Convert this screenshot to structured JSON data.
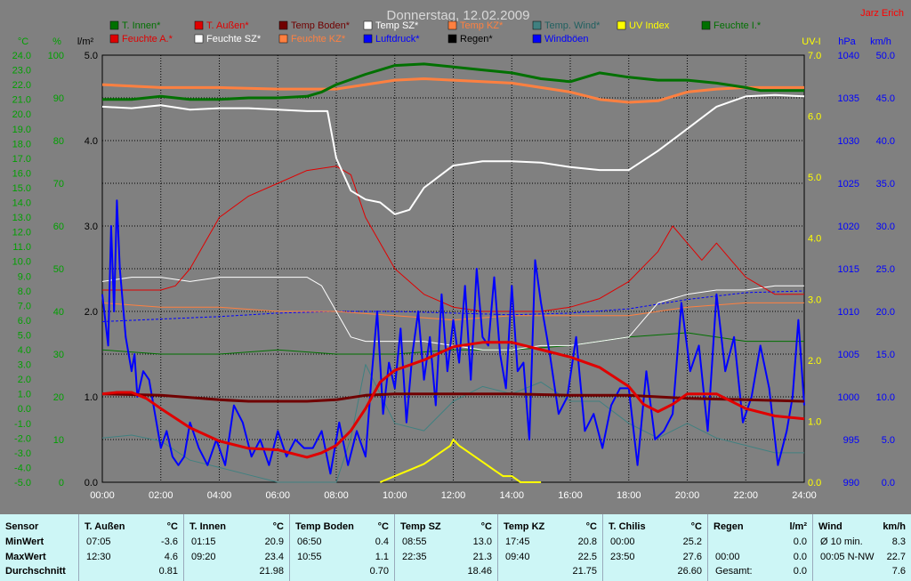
{
  "chart_data": {
    "type": "line",
    "title": "Donnerstag, 12.02.2009",
    "credit": "Jarz Erich",
    "x_ticks": [
      "00:00",
      "02:00",
      "04:00",
      "06:00",
      "08:00",
      "10:00",
      "12:00",
      "14:00",
      "16:00",
      "18:00",
      "20:00",
      "22:00",
      "24:00"
    ],
    "axes": {
      "temp": {
        "unit": "°C",
        "range": [
          -5,
          24
        ],
        "ticks": [
          "24.0",
          "23.0",
          "22.0",
          "21.0",
          "20.0",
          "19.0",
          "18.0",
          "17.0",
          "16.0",
          "15.0",
          "14.0",
          "13.0",
          "12.0",
          "11.0",
          "10.0",
          "9.0",
          "8.0",
          "7.0",
          "6.0",
          "5.0",
          "4.0",
          "3.0",
          "2.0",
          "1.0",
          "0.0",
          "-1.0",
          "-2.0",
          "-3.0",
          "-4.0",
          "-5.0"
        ]
      },
      "humidity": {
        "unit": "%",
        "range": [
          0,
          100
        ],
        "ticks": [
          "100",
          "90",
          "80",
          "70",
          "60",
          "50",
          "40",
          "30",
          "20",
          "10",
          "0"
        ]
      },
      "rain": {
        "unit": "l/m²",
        "range": [
          0,
          5
        ],
        "ticks": [
          "5.0",
          "4.0",
          "3.0",
          "2.0",
          "1.0",
          "0.0"
        ]
      },
      "uv": {
        "unit": "UV-I",
        "range": [
          0,
          7
        ],
        "ticks": [
          "7.0",
          "6.0",
          "5.0",
          "4.0",
          "3.0",
          "2.0",
          "1.0",
          "0.0"
        ]
      },
      "pressure": {
        "unit": "hPa",
        "range": [
          990,
          1040
        ],
        "ticks": [
          "1040",
          "1035",
          "1030",
          "1025",
          "1020",
          "1015",
          "1010",
          "1005",
          "1000",
          "995",
          "990"
        ]
      },
      "wind": {
        "unit": "km/h",
        "range": [
          0,
          50
        ],
        "ticks": [
          "50.0",
          "45.0",
          "40.0",
          "35.0",
          "30.0",
          "25.0",
          "20.0",
          "15.0",
          "10.0",
          "5.0",
          "0.0"
        ]
      }
    },
    "legend": [
      {
        "name": "T. Innen*",
        "color": "#007000"
      },
      {
        "name": "T. Außen*",
        "color": "#e00000"
      },
      {
        "name": "Temp Boden*",
        "color": "#700000"
      },
      {
        "name": "Temp SZ*",
        "color": "#ffffff"
      },
      {
        "name": "Temp KZ*",
        "color": "#ff8040"
      },
      {
        "name": "Temp. Wind*",
        "color": "#408080"
      },
      {
        "name": "UV Index",
        "color": "#ffff00"
      },
      {
        "name": "Feuchte I.*",
        "color": "#007000"
      },
      {
        "name": "Feuchte A.*",
        "color": "#e00000"
      },
      {
        "name": "Feuchte SZ*",
        "color": "#ffffff"
      },
      {
        "name": "Feuchte KZ*",
        "color": "#ff8040"
      },
      {
        "name": "Luftdruck*",
        "color": "#0000ff"
      },
      {
        "name": "Regen*",
        "color": "#000000"
      },
      {
        "name": "Windböen",
        "color": "#0000ff"
      }
    ],
    "series": [
      {
        "key": "t_innen",
        "name": "T. Innen*",
        "color": "#007000",
        "axis": "temp",
        "width": 3,
        "x": [
          0,
          1,
          2,
          3,
          4,
          5,
          6,
          7,
          7.5,
          8,
          9,
          9.5,
          10,
          11,
          12,
          13,
          14,
          15,
          16,
          17,
          18,
          19,
          20,
          21,
          22,
          22.5,
          23,
          24
        ],
        "y": [
          21.0,
          21.0,
          21.2,
          21.0,
          21.0,
          21.1,
          21.1,
          21.2,
          21.5,
          22.0,
          22.7,
          23.0,
          23.3,
          23.4,
          23.2,
          23.0,
          22.8,
          22.4,
          22.2,
          22.8,
          22.5,
          22.3,
          22.3,
          22.1,
          21.8,
          21.6,
          21.6,
          21.6
        ]
      },
      {
        "key": "t_aussen",
        "name": "T. Außen*",
        "color": "#e00000",
        "axis": "temp",
        "width": 3,
        "x": [
          0,
          0.5,
          1,
          1.5,
          2,
          3,
          4,
          5,
          6,
          7,
          7.5,
          8,
          8.5,
          9,
          9.5,
          10,
          11,
          12,
          13,
          14,
          15,
          16,
          17,
          18,
          18.5,
          19,
          19.5,
          20,
          21,
          22,
          23,
          24
        ],
        "y": [
          1.0,
          1.1,
          1.1,
          0.7,
          0.0,
          -1.3,
          -2.2,
          -2.7,
          -2.8,
          -3.3,
          -3.0,
          -2.5,
          -1.5,
          0.0,
          1.8,
          2.6,
          3.3,
          4.2,
          4.5,
          4.5,
          4.0,
          3.5,
          2.8,
          1.5,
          0.3,
          -0.2,
          0.3,
          1.0,
          1.0,
          0.0,
          -0.5,
          -0.7
        ]
      },
      {
        "key": "t_boden",
        "name": "Temp Boden*",
        "color": "#700000",
        "axis": "temp",
        "width": 3,
        "x": [
          0,
          2,
          4,
          5,
          6,
          7,
          8,
          9,
          10,
          12,
          14,
          16,
          18,
          20,
          22,
          24
        ],
        "y": [
          1.0,
          0.9,
          0.6,
          0.5,
          0.5,
          0.5,
          0.6,
          0.9,
          1.0,
          1.0,
          1.0,
          0.9,
          0.9,
          0.7,
          0.6,
          0.5
        ]
      },
      {
        "key": "t_sz",
        "name": "Temp SZ*",
        "color": "#ffffff",
        "axis": "temp",
        "width": 2,
        "x": [
          0,
          1,
          2,
          3,
          4,
          5,
          6,
          7,
          7.7,
          8,
          8.5,
          9,
          9.5,
          10,
          10.5,
          11,
          12,
          13,
          14,
          15,
          16,
          17,
          18,
          19,
          20,
          21,
          22,
          23,
          24
        ],
        "y": [
          20.5,
          20.4,
          20.6,
          20.3,
          20.4,
          20.4,
          20.3,
          20.2,
          20.2,
          17.0,
          14.8,
          14.2,
          14.0,
          13.2,
          13.5,
          15.0,
          16.5,
          16.8,
          16.8,
          16.7,
          16.4,
          16.2,
          16.2,
          17.5,
          19.0,
          20.5,
          21.2,
          21.3,
          21.2
        ]
      },
      {
        "key": "t_kz",
        "name": "Temp KZ*",
        "color": "#ff8040",
        "axis": "temp",
        "width": 3,
        "x": [
          0,
          2,
          4,
          6,
          8,
          9,
          10,
          11,
          12,
          13,
          14,
          15,
          16,
          17,
          18,
          19,
          20,
          21,
          22,
          23,
          24
        ],
        "y": [
          22.0,
          21.8,
          21.8,
          21.7,
          21.7,
          22.0,
          22.3,
          22.4,
          22.3,
          22.2,
          22.1,
          21.8,
          21.5,
          21.0,
          20.8,
          20.9,
          21.5,
          21.7,
          21.8,
          21.8,
          21.8
        ]
      },
      {
        "key": "feuchte_a",
        "name": "Feuchte A.*",
        "color": "#e00000",
        "axis": "humidity",
        "width": 1,
        "x": [
          0,
          1,
          2,
          2.5,
          3,
          4,
          5,
          6,
          7,
          8,
          8.5,
          9,
          10,
          11,
          12,
          13,
          14,
          15,
          16,
          17,
          18,
          19,
          19.5,
          20,
          20.5,
          21,
          21.5,
          22,
          23,
          24
        ],
        "y": [
          45,
          45,
          45,
          46,
          50,
          62,
          67,
          70,
          73,
          74,
          72,
          62,
          50,
          44,
          41,
          40,
          40,
          40,
          41,
          43,
          47,
          54,
          60,
          56,
          52,
          56,
          52,
          48,
          44,
          44
        ]
      },
      {
        "key": "feuchte_sz",
        "name": "Feuchte SZ*",
        "color": "#ffffff",
        "axis": "humidity",
        "width": 1,
        "x": [
          0,
          1,
          2,
          3,
          4,
          5,
          6,
          7,
          7.5,
          8,
          8.5,
          9,
          10,
          11,
          12,
          13,
          14,
          15,
          16,
          17,
          18,
          19,
          20,
          21,
          22,
          23,
          24
        ],
        "y": [
          47,
          48,
          48,
          47,
          48,
          48,
          48,
          48,
          46,
          40,
          34,
          33,
          33,
          33,
          32,
          31,
          31,
          32,
          32,
          33,
          34,
          42,
          44,
          45,
          45,
          46,
          46
        ]
      },
      {
        "key": "feuchte_kz",
        "name": "Feuchte KZ*",
        "color": "#ff8040",
        "axis": "humidity",
        "width": 1,
        "x": [
          0,
          2,
          4,
          6,
          8,
          10,
          12,
          14,
          16,
          18,
          20,
          22,
          24
        ],
        "y": [
          42,
          41,
          41,
          40,
          40,
          39,
          38,
          39,
          39,
          39,
          41,
          42,
          42
        ]
      },
      {
        "key": "feuchte_i",
        "name": "Feuchte I.*",
        "color": "#007000",
        "axis": "humidity",
        "width": 1,
        "x": [
          0,
          2,
          4,
          6,
          8,
          10,
          12,
          14,
          16,
          18,
          20,
          22,
          24
        ],
        "y": [
          31,
          30,
          30,
          31,
          30,
          30,
          31,
          31,
          32,
          34,
          35,
          33,
          33
        ]
      },
      {
        "key": "temp_wind",
        "name": "Temp. Wind*",
        "color": "#408080",
        "axis": "temp",
        "width": 1,
        "x": [
          0,
          1,
          2,
          3,
          4,
          5,
          6,
          7,
          8,
          8.5,
          9,
          9.5,
          10,
          11,
          12,
          13,
          14,
          15,
          16,
          17,
          18,
          19,
          20,
          21,
          22,
          23,
          24
        ],
        "y": [
          -2.0,
          -1.8,
          -2.2,
          -3.5,
          -4.0,
          -4.5,
          -5.0,
          -5.0,
          -5.0,
          -2.0,
          3.0,
          1.0,
          -1.0,
          -1.5,
          0.5,
          1.5,
          1.0,
          1.8,
          0.5,
          0.5,
          -1.0,
          -2.0,
          -1.0,
          -2.0,
          -2.5,
          -3.0,
          -3.0
        ]
      },
      {
        "key": "luftdruck",
        "name": "Luftdruck*",
        "color": "#0000ff",
        "axis": "pressure",
        "width": 1,
        "dash": "3,2",
        "x": [
          0,
          2,
          4,
          6,
          8,
          10,
          12,
          14,
          16,
          18,
          20,
          22,
          24
        ],
        "y": [
          1008.8,
          1009.1,
          1009.4,
          1009.8,
          1010.0,
          1010.0,
          1009.8,
          1009.6,
          1009.8,
          1010.3,
          1011.4,
          1012.2,
          1012.4
        ]
      },
      {
        "key": "uv",
        "name": "UV Index",
        "color": "#ffff00",
        "axis": "uv",
        "width": 2,
        "x": [
          9.5,
          10,
          10.5,
          11,
          11.3,
          11.6,
          11.9,
          12,
          12.2,
          12.5,
          12.8,
          13.1,
          13.4,
          13.7,
          14,
          14.3,
          14.6,
          15
        ],
        "y": [
          0.0,
          0.1,
          0.2,
          0.3,
          0.4,
          0.5,
          0.6,
          0.7,
          0.6,
          0.5,
          0.4,
          0.3,
          0.2,
          0.1,
          0.1,
          0.0,
          0.0,
          0.0
        ]
      },
      {
        "key": "windboeen",
        "name": "Windböen",
        "color": "#0000ff",
        "axis": "wind",
        "width": 2,
        "x": [
          0,
          0.2,
          0.3,
          0.4,
          0.5,
          0.6,
          0.7,
          0.8,
          0.9,
          1.0,
          1.1,
          1.2,
          1.4,
          1.6,
          1.8,
          2.0,
          2.2,
          2.4,
          2.6,
          2.8,
          3.0,
          3.3,
          3.6,
          3.9,
          4.2,
          4.5,
          4.8,
          5.1,
          5.4,
          5.7,
          6.0,
          6.3,
          6.6,
          6.9,
          7.2,
          7.5,
          7.8,
          8.1,
          8.4,
          8.7,
          9.0,
          9.2,
          9.4,
          9.6,
          9.8,
          10.0,
          10.2,
          10.4,
          10.6,
          10.8,
          11.0,
          11.2,
          11.4,
          11.6,
          11.8,
          12.0,
          12.2,
          12.4,
          12.6,
          12.8,
          13.0,
          13.2,
          13.4,
          13.6,
          13.8,
          14.0,
          14.2,
          14.4,
          14.6,
          14.8,
          15.0,
          15.3,
          15.6,
          15.9,
          16.2,
          16.5,
          16.8,
          17.1,
          17.4,
          17.7,
          18.0,
          18.3,
          18.6,
          18.9,
          19.2,
          19.5,
          19.8,
          20.1,
          20.4,
          20.7,
          21.0,
          21.3,
          21.6,
          21.9,
          22.2,
          22.5,
          22.8,
          23.1,
          23.4,
          23.6,
          23.8,
          24.0
        ],
        "y": [
          22,
          16,
          30,
          20,
          33,
          25,
          21,
          17,
          15,
          13,
          15,
          10,
          13,
          12,
          8,
          4,
          6,
          3,
          2,
          3,
          7,
          4,
          2,
          5,
          2,
          9,
          7,
          3,
          5,
          2,
          6,
          3,
          5,
          4,
          4,
          6,
          1,
          7,
          2,
          6,
          3,
          12,
          20,
          8,
          14,
          11,
          18,
          7,
          15,
          20,
          12,
          17,
          9,
          22,
          13,
          19,
          14,
          23,
          12,
          25,
          17,
          16,
          24,
          15,
          11,
          23,
          13,
          14,
          5,
          26,
          21,
          15,
          8,
          10,
          17,
          6,
          8,
          4,
          9,
          11,
          11,
          2,
          13,
          5,
          6,
          8,
          21,
          13,
          16,
          6,
          22,
          13,
          17,
          7,
          10,
          16,
          11,
          2,
          6,
          10,
          19,
          9
        ]
      }
    ]
  },
  "stats": {
    "sensor": {
      "title": "Sensor",
      "rows": [
        "MinWert",
        "MaxWert",
        "Durchschnitt"
      ]
    },
    "groups": [
      {
        "title": "T. Außen",
        "unit": "°C",
        "rows": [
          [
            "07:05",
            "-3.6"
          ],
          [
            "12:30",
            "4.6"
          ],
          [
            "",
            "0.81"
          ]
        ]
      },
      {
        "title": "T. Innen",
        "unit": "°C",
        "rows": [
          [
            "01:15",
            "20.9"
          ],
          [
            "09:20",
            "23.4"
          ],
          [
            "",
            "21.98"
          ]
        ]
      },
      {
        "title": "Temp Boden",
        "unit": "°C",
        "rows": [
          [
            "06:50",
            "0.4"
          ],
          [
            "10:55",
            "1.1"
          ],
          [
            "",
            "0.70"
          ]
        ]
      },
      {
        "title": "Temp SZ",
        "unit": "°C",
        "rows": [
          [
            "08:55",
            "13.0"
          ],
          [
            "22:35",
            "21.3"
          ],
          [
            "",
            "18.46"
          ]
        ]
      },
      {
        "title": "Temp KZ",
        "unit": "°C",
        "rows": [
          [
            "17:45",
            "20.8"
          ],
          [
            "09:40",
            "22.5"
          ],
          [
            "",
            "21.75"
          ]
        ]
      },
      {
        "title": "T. Chilis",
        "unit": "°C",
        "rows": [
          [
            "00:00",
            "25.2"
          ],
          [
            "23:50",
            "27.6"
          ],
          [
            "",
            "26.60"
          ]
        ]
      },
      {
        "title": "Regen",
        "unit": "l/m²",
        "rows": [
          [
            "",
            "0.0"
          ],
          [
            "00:00",
            "0.0"
          ],
          [
            "Gesamt:",
            "0.0"
          ]
        ]
      },
      {
        "title": "Wind",
        "unit": "km/h",
        "rows": [
          [
            "Ø 10 min.",
            "8.3"
          ],
          [
            "00:05    N-NW",
            "22.7"
          ],
          [
            "",
            "7.6"
          ]
        ]
      }
    ]
  }
}
